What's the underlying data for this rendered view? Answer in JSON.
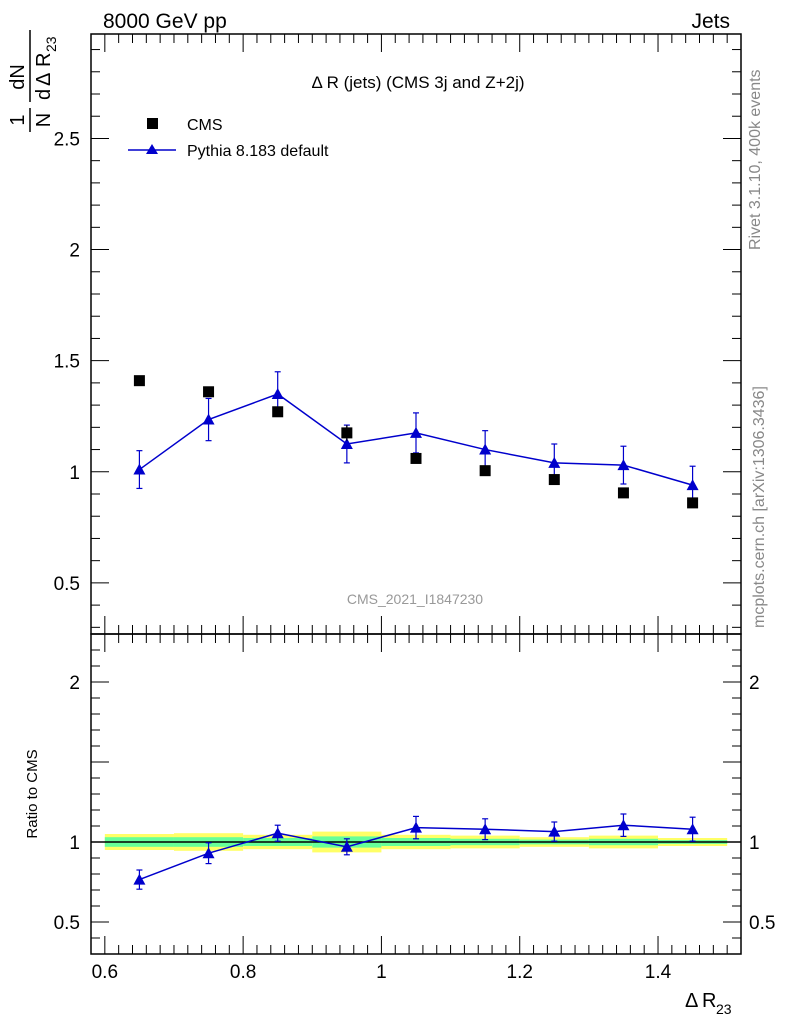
{
  "header": {
    "left": "8000 GeV pp",
    "right": "Jets"
  },
  "side_labels": {
    "rivet": "Rivet 3.1.10,  400k events",
    "mcplots": "mcplots.cern.ch [arXiv:1306.3436]"
  },
  "watermark": "CMS_2021_I1847230",
  "colors": {
    "data": "#000000",
    "mc": "#0000cc",
    "band_outer": "#ffff66",
    "band_inner": "#66ff99"
  },
  "chart_data": [
    {
      "type": "scatter",
      "panel": "main",
      "title": "Δ R (jets) (CMS 3j and Z+2j)",
      "ylabel": {
        "one": "1",
        "n": "N",
        "dn": "dN",
        "d": "d",
        "delta": "Δ",
        "r": "R",
        "sub": "23"
      },
      "xlim": [
        0.58,
        1.52
      ],
      "ylim": [
        0.27,
        2.97
      ],
      "yticks": [
        0.5,
        1,
        1.5,
        2,
        2.5
      ],
      "ytick_labels": [
        "0.5",
        "1",
        "1.5",
        "2",
        "2.5"
      ],
      "legend": {
        "position": "top-left",
        "entries": [
          {
            "label": "CMS",
            "marker": "square"
          },
          {
            "label": "Pythia 8.183 default",
            "marker": "triangle"
          }
        ]
      },
      "x": [
        0.65,
        0.75,
        0.85,
        0.95,
        1.05,
        1.15,
        1.25,
        1.35,
        1.45
      ],
      "series": [
        {
          "name": "CMS",
          "values": [
            1.41,
            1.36,
            1.27,
            1.175,
            1.06,
            1.005,
            0.965,
            0.905,
            0.86
          ],
          "err": [
            0,
            0,
            0,
            0.035,
            0,
            0,
            0,
            0,
            0
          ]
        },
        {
          "name": "Pythia 8.183 default",
          "values": [
            1.01,
            1.235,
            1.35,
            1.125,
            1.175,
            1.1,
            1.04,
            1.03,
            0.94
          ],
          "err": [
            0.085,
            0.095,
            0.1,
            0.085,
            0.09,
            0.085,
            0.085,
            0.085,
            0.085
          ]
        }
      ]
    },
    {
      "type": "line",
      "panel": "ratio",
      "xlabel": {
        "delta": "Δ",
        "r": "R",
        "sub": "23"
      },
      "ylabel": "Ratio to CMS",
      "xlim": [
        0.58,
        1.52
      ],
      "ylim": [
        0.3,
        2.3
      ],
      "xticks": [
        0.6,
        0.8,
        1,
        1.2,
        1.4
      ],
      "xtick_labels": [
        "0.6",
        "0.8",
        "1",
        "1.2",
        "1.4"
      ],
      "yticks": [
        0.5,
        1,
        2
      ],
      "ytick_labels": [
        "0.5",
        "1",
        "2"
      ],
      "bands": {
        "bin_edges": [
          0.6,
          0.7,
          0.8,
          0.9,
          1.0,
          1.1,
          1.2,
          1.3,
          1.4,
          1.5
        ],
        "outer": [
          0.05,
          0.055,
          0.045,
          0.065,
          0.045,
          0.04,
          0.03,
          0.04,
          0.025
        ],
        "inner": [
          0.03,
          0.03,
          0.025,
          0.035,
          0.025,
          0.02,
          0.015,
          0.02,
          0.012
        ]
      },
      "x": [
        0.65,
        0.75,
        0.85,
        0.95,
        1.05,
        1.15,
        1.25,
        1.35,
        1.45
      ],
      "series": [
        {
          "name": "Pythia 8.183 default",
          "values": [
            0.765,
            0.93,
            1.055,
            0.97,
            1.09,
            1.08,
            1.065,
            1.105,
            1.08
          ],
          "err": [
            0.06,
            0.065,
            0.05,
            0.05,
            0.07,
            0.065,
            0.06,
            0.07,
            0.075
          ]
        }
      ]
    }
  ]
}
